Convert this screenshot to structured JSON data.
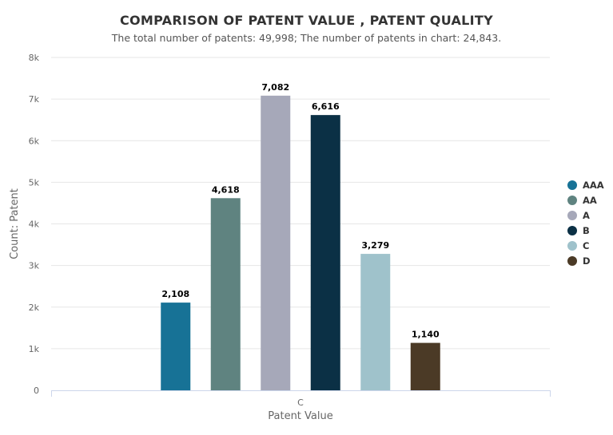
{
  "chart_data": {
    "type": "bar",
    "title": "COMPARISON OF PATENT VALUE , PATENT QUALITY",
    "subtitle": "The total number of patents: 49,998; The number of patents in chart: 24,843.",
    "xlabel": "Patent Value",
    "ylabel": "Count: Patent",
    "categories": [
      "C"
    ],
    "ylim": [
      0,
      8000
    ],
    "yticks": [
      "0",
      "1k",
      "2k",
      "3k",
      "4k",
      "5k",
      "6k",
      "7k",
      "8k"
    ],
    "grid": true,
    "legend_position": "right",
    "series": [
      {
        "name": "AAA",
        "values": [
          2108
        ],
        "label": "2,108",
        "color": "#177296"
      },
      {
        "name": "AA",
        "values": [
          4618
        ],
        "label": "4,618",
        "color": "#5f8380"
      },
      {
        "name": "A",
        "values": [
          7082
        ],
        "label": "7,082",
        "color": "#a6a8b9"
      },
      {
        "name": "B",
        "values": [
          6616
        ],
        "label": "6,616",
        "color": "#0b3045"
      },
      {
        "name": "C",
        "values": [
          3279
        ],
        "label": "3,279",
        "color": "#9fc2cb"
      },
      {
        "name": "D",
        "values": [
          1140
        ],
        "label": "1,140",
        "color": "#4b3a26"
      }
    ]
  }
}
